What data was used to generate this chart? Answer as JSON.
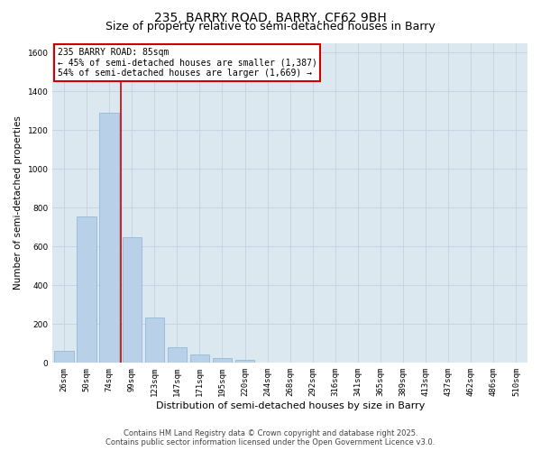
{
  "title": "235, BARRY ROAD, BARRY, CF62 9BH",
  "subtitle": "Size of property relative to semi-detached houses in Barry",
  "xlabel": "Distribution of semi-detached houses by size in Barry",
  "ylabel": "Number of semi-detached properties",
  "categories": [
    "26sqm",
    "50sqm",
    "74sqm",
    "99sqm",
    "123sqm",
    "147sqm",
    "171sqm",
    "195sqm",
    "220sqm",
    "244sqm",
    "268sqm",
    "292sqm",
    "316sqm",
    "341sqm",
    "365sqm",
    "389sqm",
    "413sqm",
    "437sqm",
    "462sqm",
    "486sqm",
    "510sqm"
  ],
  "values": [
    60,
    755,
    1290,
    650,
    235,
    80,
    45,
    25,
    15,
    0,
    0,
    0,
    0,
    0,
    0,
    0,
    0,
    0,
    0,
    0,
    0
  ],
  "bar_color": "#b8d0e8",
  "bar_edge_color": "#88b4d4",
  "red_line_x": 2.5,
  "annotation_title": "235 BARRY ROAD: 85sqm",
  "annotation_line1": "← 45% of semi-detached houses are smaller (1,387)",
  "annotation_line2": "54% of semi-detached houses are larger (1,669) →",
  "annotation_box_facecolor": "#ffffff",
  "annotation_box_edgecolor": "#cc0000",
  "red_line_color": "#cc0000",
  "grid_color": "#c8d4e4",
  "bg_color": "#dce8f0",
  "ylim": [
    0,
    1650
  ],
  "yticks": [
    0,
    200,
    400,
    600,
    800,
    1000,
    1200,
    1400,
    1600
  ],
  "footer": "Contains HM Land Registry data © Crown copyright and database right 2025.\nContains public sector information licensed under the Open Government Licence v3.0.",
  "title_fontsize": 10,
  "subtitle_fontsize": 9,
  "ylabel_fontsize": 7.5,
  "xlabel_fontsize": 8,
  "tick_fontsize": 6.5,
  "annotation_fontsize": 7,
  "footer_fontsize": 6
}
